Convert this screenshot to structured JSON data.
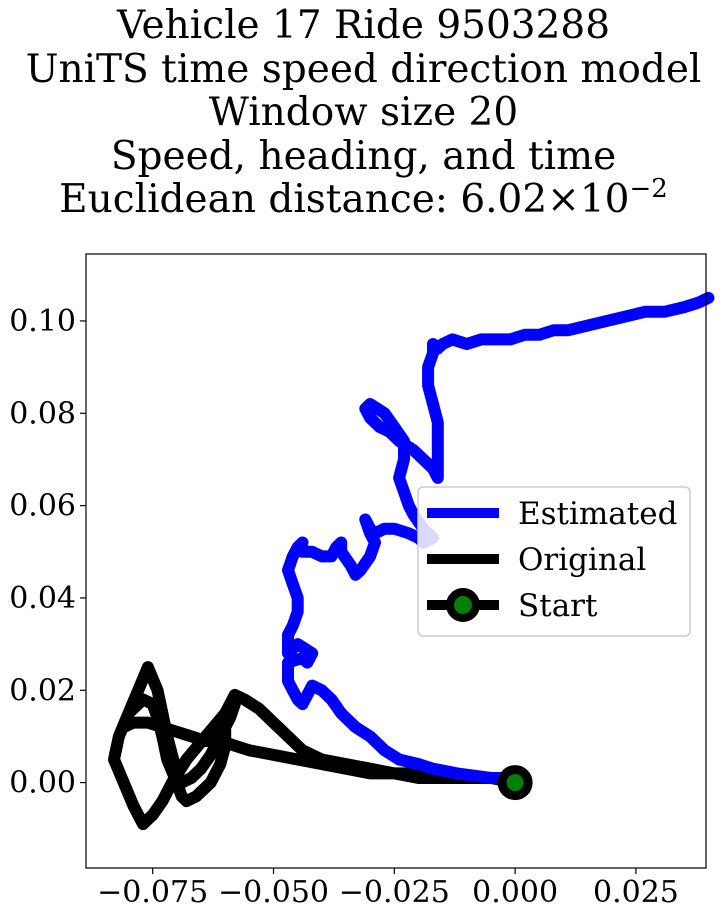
{
  "title_lines": [
    "Vehicle 17 Ride 9503288",
    "UniTS time speed direction model",
    "Window size 20",
    "Speed, heading, and time"
  ],
  "title_distance": {
    "prefix": "Euclidean distance: ",
    "mantissa": "6.02",
    "times": "×",
    "base": "10",
    "exponent": "−2"
  },
  "colors": {
    "estimated": "#0000ff",
    "original": "#000000",
    "start_marker_face": "#008000",
    "start_marker_edge": "#000000"
  },
  "chart_data": {
    "type": "line",
    "title": "Vehicle 17 Ride 9503288 / UniTS time speed direction model / Window size 20 / Speed, heading, and time / Euclidean distance: 6.02 × 10^−2",
    "xlabel": "",
    "ylabel": "",
    "xlim": [
      -0.0888,
      0.0395
    ],
    "ylim": [
      -0.0185,
      0.1145
    ],
    "xticks": [
      -0.075,
      -0.05,
      -0.025,
      0.0,
      0.025
    ],
    "xtick_labels": [
      "−0.075",
      "−0.050",
      "−0.025",
      "0.000",
      "0.025"
    ],
    "yticks": [
      0.0,
      0.02,
      0.04,
      0.06,
      0.08,
      0.1
    ],
    "ytick_labels": [
      "0.00",
      "0.02",
      "0.04",
      "0.06",
      "0.08",
      "0.10"
    ],
    "grid": false,
    "legend": {
      "position": "center-right",
      "entries": [
        "Estimated",
        "Original",
        "Start"
      ]
    },
    "series": [
      {
        "name": "Estimated",
        "color": "#0000ff",
        "x": [
          0.0,
          -0.005,
          -0.012,
          -0.017,
          -0.02,
          -0.024,
          -0.027,
          -0.03,
          -0.033,
          -0.036,
          -0.038,
          -0.04,
          -0.042,
          -0.043,
          -0.044,
          -0.045,
          -0.046,
          -0.047,
          -0.047,
          -0.044,
          -0.043,
          -0.042,
          -0.045,
          -0.047,
          -0.047,
          -0.046,
          -0.045,
          -0.045,
          -0.046,
          -0.047,
          -0.046,
          -0.045,
          -0.044,
          -0.044,
          -0.045,
          -0.044,
          -0.042,
          -0.04,
          -0.038,
          -0.037,
          -0.036,
          -0.036,
          -0.034,
          -0.033,
          -0.032,
          -0.03,
          -0.029,
          -0.03,
          -0.031,
          -0.03,
          -0.029,
          -0.027,
          -0.025,
          -0.022,
          -0.02,
          -0.019,
          -0.017,
          -0.019,
          -0.021,
          -0.022,
          -0.023,
          -0.024,
          -0.023,
          -0.023,
          -0.025,
          -0.027,
          -0.03,
          -0.031,
          -0.03,
          -0.028,
          -0.026,
          -0.024,
          -0.021,
          -0.019,
          -0.017,
          -0.016,
          -0.016,
          -0.016,
          -0.016,
          -0.017,
          -0.018,
          -0.018,
          -0.017,
          -0.017,
          -0.016,
          -0.015,
          -0.013,
          -0.01,
          -0.007,
          -0.004,
          -0.001,
          0.002,
          0.005,
          0.008,
          0.011,
          0.015,
          0.019,
          0.023,
          0.027,
          0.031,
          0.035,
          0.038,
          0.04
        ],
        "y": [
          0.001,
          0.001,
          0.002,
          0.003,
          0.004,
          0.005,
          0.007,
          0.01,
          0.012,
          0.015,
          0.018,
          0.02,
          0.021,
          0.019,
          0.017,
          0.018,
          0.02,
          0.022,
          0.026,
          0.027,
          0.026,
          0.028,
          0.03,
          0.028,
          0.032,
          0.034,
          0.037,
          0.04,
          0.043,
          0.046,
          0.049,
          0.051,
          0.052,
          0.052,
          0.051,
          0.05,
          0.05,
          0.049,
          0.049,
          0.051,
          0.052,
          0.05,
          0.047,
          0.045,
          0.046,
          0.049,
          0.052,
          0.054,
          0.057,
          0.055,
          0.054,
          0.055,
          0.055,
          0.054,
          0.053,
          0.052,
          0.053,
          0.055,
          0.058,
          0.06,
          0.063,
          0.066,
          0.07,
          0.074,
          0.077,
          0.08,
          0.082,
          0.081,
          0.079,
          0.077,
          0.076,
          0.074,
          0.072,
          0.07,
          0.068,
          0.066,
          0.07,
          0.074,
          0.078,
          0.082,
          0.086,
          0.09,
          0.093,
          0.095,
          0.094,
          0.095,
          0.096,
          0.095,
          0.096,
          0.096,
          0.096,
          0.097,
          0.097,
          0.098,
          0.098,
          0.099,
          0.1,
          0.101,
          0.102,
          0.102,
          0.103,
          0.104,
          0.105
        ]
      },
      {
        "name": "Original",
        "color": "#000000",
        "x": [
          0.0,
          -0.005,
          -0.01,
          -0.015,
          -0.02,
          -0.025,
          -0.03,
          -0.035,
          -0.04,
          -0.044,
          -0.047,
          -0.05,
          -0.053,
          -0.056,
          -0.058,
          -0.06,
          -0.064,
          -0.068,
          -0.071,
          -0.073,
          -0.075,
          -0.077,
          -0.079,
          -0.081,
          -0.083,
          -0.082,
          -0.08,
          -0.077,
          -0.075,
          -0.074,
          -0.073,
          -0.072,
          -0.07,
          -0.069,
          -0.068,
          -0.066,
          -0.063,
          -0.061,
          -0.06,
          -0.06,
          -0.059,
          -0.058,
          -0.058,
          -0.059,
          -0.061,
          -0.063,
          -0.065,
          -0.067,
          -0.069,
          -0.07,
          -0.071,
          -0.072,
          -0.073,
          -0.074,
          -0.076,
          -0.078,
          -0.08,
          -0.081,
          -0.079,
          -0.076,
          -0.073,
          -0.07,
          -0.067,
          -0.064,
          -0.061,
          -0.058,
          -0.055,
          -0.05,
          -0.045,
          -0.04,
          -0.035,
          -0.03,
          -0.025,
          -0.02,
          -0.015,
          -0.01,
          -0.005,
          0.0
        ],
        "y": [
          0.001,
          0.001,
          0.001,
          0.001,
          0.002,
          0.002,
          0.003,
          0.004,
          0.005,
          0.007,
          0.01,
          0.013,
          0.016,
          0.018,
          0.019,
          0.015,
          0.01,
          0.005,
          0.0,
          -0.004,
          -0.007,
          -0.009,
          -0.005,
          0.0,
          0.005,
          0.01,
          0.015,
          0.018,
          0.017,
          0.014,
          0.01,
          0.005,
          0.0,
          -0.003,
          -0.004,
          -0.003,
          0.0,
          0.004,
          0.008,
          0.012,
          0.016,
          0.018,
          0.017,
          0.014,
          0.01,
          0.006,
          0.003,
          0.001,
          0.0,
          0.002,
          0.006,
          0.01,
          0.015,
          0.02,
          0.025,
          0.02,
          0.015,
          0.012,
          0.013,
          0.013,
          0.012,
          0.011,
          0.01,
          0.009,
          0.009,
          0.008,
          0.007,
          0.006,
          0.005,
          0.004,
          0.003,
          0.002,
          0.002,
          0.001,
          0.001,
          0.001,
          0.001,
          0.0
        ]
      },
      {
        "name": "Start",
        "color": "#008000",
        "x": [
          0.0
        ],
        "y": [
          0.0
        ]
      }
    ]
  }
}
